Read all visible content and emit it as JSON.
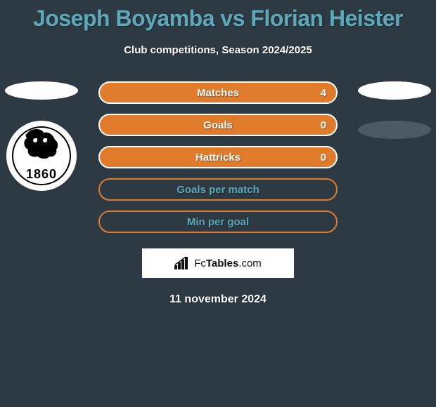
{
  "title": "Joseph Boyamba vs Florian Heister",
  "subtitle": "Club competitions, Season 2024/2025",
  "colors": {
    "background": "#2d3a43",
    "title_color": "#5fa8b8",
    "text_color": "#ffffff",
    "bar_fill": "#e07b2c",
    "bar_border": "#ffffff",
    "bar_empty_fill": "transparent",
    "bar_empty_border": "#e07b2c",
    "bar_label_filled": "#ffffff",
    "bar_label_empty": "#5fa8b8",
    "avatar_left": "#ffffff",
    "avatar_right": "#ffffff",
    "club_right_oval": "#4c5a63",
    "branding_bg": "#ffffff"
  },
  "players": {
    "left": {
      "avatar_color": "#ffffff",
      "club_year": "1860"
    },
    "right": {
      "avatar_color": "#ffffff",
      "club_oval_color": "#4c5a63"
    }
  },
  "stats": [
    {
      "label": "Matches",
      "value": "4",
      "filled": true
    },
    {
      "label": "Goals",
      "value": "0",
      "filled": true
    },
    {
      "label": "Hattricks",
      "value": "0",
      "filled": true
    },
    {
      "label": "Goals per match",
      "value": "",
      "filled": false
    },
    {
      "label": "Min per goal",
      "value": "",
      "filled": false
    }
  ],
  "branding": {
    "prefix": "Fc",
    "bold": "Tables",
    "suffix": ".com"
  },
  "date": "11 november 2024"
}
